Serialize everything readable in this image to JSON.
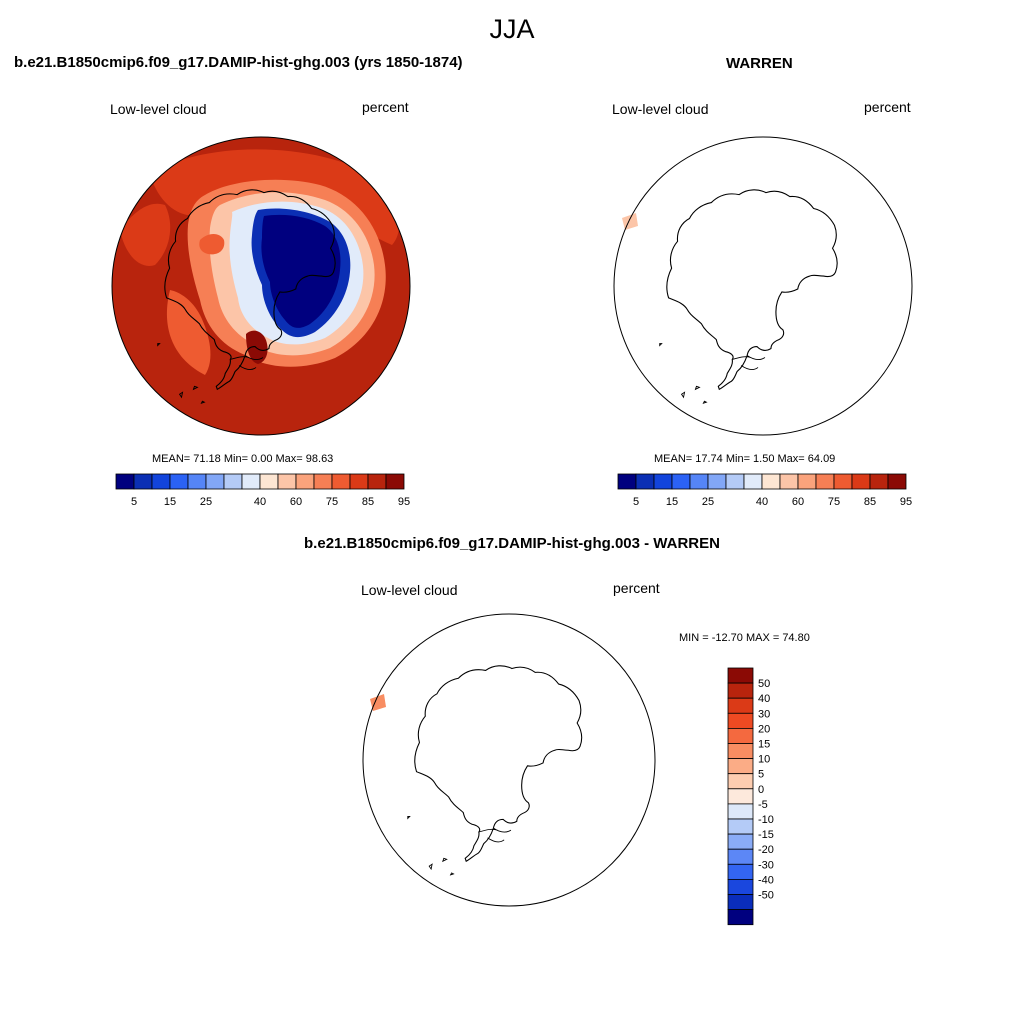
{
  "figure": {
    "title": "JJA"
  },
  "panels": [
    {
      "title": "b.e21.B1850cmip6.f09_g17.DAMIP-hist-ghg.003 (yrs 1850-1874)",
      "variable": "Low-level cloud",
      "units": "percent",
      "stats": "MEAN=  71.18  Min=   0.00  Max=  98.63"
    },
    {
      "title": "WARREN",
      "variable": "Low-level cloud",
      "units": "percent",
      "stats": "MEAN=  17.74  Min=   1.50  Max=  64.09"
    },
    {
      "title": "b.e21.B1850cmip6.f09_g17.DAMIP-hist-ghg.003 - WARREN",
      "variable": "Low-level cloud",
      "units": "percent",
      "stats": "MIN = -12.70 MAX =  74.80"
    }
  ],
  "colorbar_abs": {
    "tick_labels": [
      "5",
      "15",
      "25",
      "40",
      "60",
      "75",
      "85",
      "95"
    ],
    "colors": [
      "#00007f",
      "#0b2fb4",
      "#1244dc",
      "#2b62f5",
      "#5585f7",
      "#82a7f7",
      "#b4cbf7",
      "#e1ebfa",
      "#fde6d3",
      "#fcc5a8",
      "#faa37c",
      "#f67f55",
      "#ee5b31",
      "#db3a17",
      "#b8240d",
      "#8b0a05"
    ]
  },
  "colorbar_diff": {
    "tick_labels": [
      "50",
      "40",
      "30",
      "20",
      "15",
      "10",
      "5",
      "0",
      "-5",
      "-10",
      "-15",
      "-20",
      "-30",
      "-40",
      "-50"
    ],
    "colors": [
      "#8b0a05",
      "#b8240d",
      "#db3a17",
      "#ee4a22",
      "#f4693f",
      "#f88d62",
      "#fbac86",
      "#fdcdb0",
      "#fde9dc",
      "#dde8f9",
      "#b4cbf7",
      "#8aacf7",
      "#5c87f6",
      "#3365f2",
      "#1a47de",
      "#0a2dbb",
      "#00007f"
    ]
  }
}
